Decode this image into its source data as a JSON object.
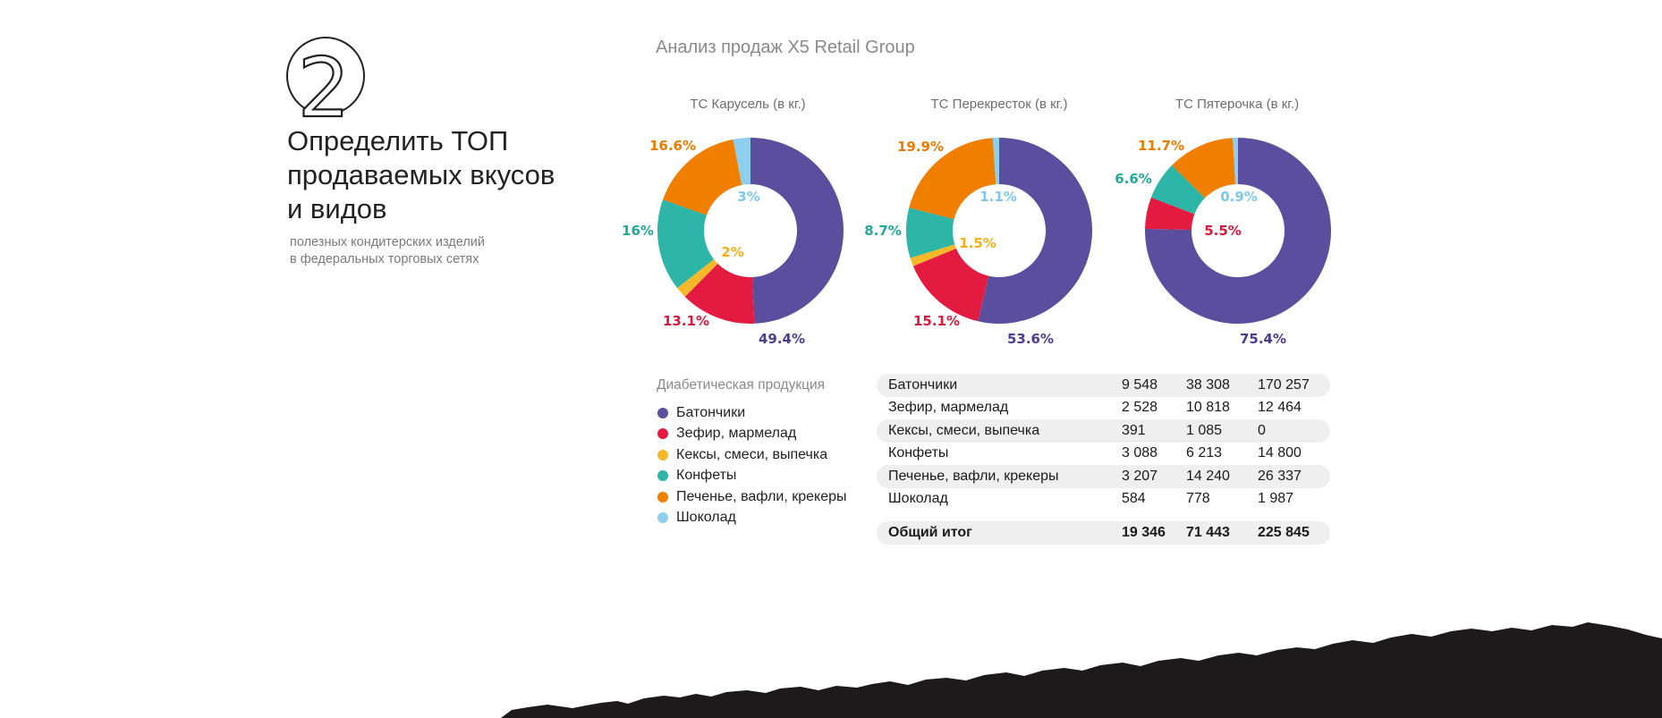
{
  "step_number": "2",
  "heading": {
    "line1": "Определить ТОП",
    "line2": "продаваемых вкусов",
    "line3": "и видов"
  },
  "subheading": {
    "line1": "полезных кондитерских изделий",
    "line2": "в федеральных торговых сетях"
  },
  "main_title": "Анализ продаж X5 Retail Group",
  "legend": {
    "title": "Диабетическая продукция",
    "items": [
      {
        "label": "Батончики",
        "color": "#5b4e9e"
      },
      {
        "label": "Зефир, мармелад",
        "color": "#e31b40"
      },
      {
        "label": "Кексы, смеси, выпечка",
        "color": "#f4b829"
      },
      {
        "label": "Конфеты",
        "color": "#2db5a8"
      },
      {
        "label": "Печенье, вафли, крекеры",
        "color": "#f07f00"
      },
      {
        "label": "Шоколад",
        "color": "#8ecfee"
      }
    ]
  },
  "table": {
    "rows": [
      {
        "name": "Батончики",
        "v1": "9 548",
        "v2": "38 308",
        "v3": "170 257"
      },
      {
        "name": "Зефир, мармелад",
        "v1": "2 528",
        "v2": "10 818",
        "v3": "12 464"
      },
      {
        "name": "Кексы, смеси, выпечка",
        "v1": "391",
        "v2": "1 085",
        "v3": "0"
      },
      {
        "name": "Конфеты",
        "v1": "3 088",
        "v2": "6 213",
        "v3": "14 800"
      },
      {
        "name": "Печенье, вафли, крекеры",
        "v1": "3 207",
        "v2": "14 240",
        "v3": "26 337"
      },
      {
        "name": "Шоколад",
        "v1": "584",
        "v2": "778",
        "v3": "1 987"
      }
    ],
    "total": {
      "name": "Общий итог",
      "v1": "19 346",
      "v2": "71 443",
      "v3": "225 845"
    }
  },
  "chart_data": [
    {
      "type": "pie",
      "title": "ТС Карусель (в кг.)",
      "categories": [
        "Батончики",
        "Зефир, мармелад",
        "Кексы, смеси, выпечка",
        "Конфеты",
        "Печенье, вафли, крекеры",
        "Шоколад"
      ],
      "values": [
        49.4,
        13.1,
        2,
        16,
        16.6,
        3
      ],
      "labels": [
        "49.4%",
        "13.1%",
        "2%",
        "16%",
        "16.6%",
        "3%"
      ]
    },
    {
      "type": "pie",
      "title": "ТС Перекресток (в кг.)",
      "categories": [
        "Батончики",
        "Зефир, мармелад",
        "Кексы, смеси, выпечка",
        "Конфеты",
        "Печенье, вафли, крекеры",
        "Шоколад"
      ],
      "values": [
        53.6,
        15.1,
        1.5,
        8.7,
        19.9,
        1.1
      ],
      "labels": [
        "53.6%",
        "15.1%",
        "1.5%",
        "8.7%",
        "19.9%",
        "1.1%"
      ]
    },
    {
      "type": "pie",
      "title": "ТС Пятерочка (в кг.)",
      "categories": [
        "Батончики",
        "Зефир, мармелад",
        "Кексы, смеси, выпечка",
        "Конфеты",
        "Печенье, вафли, крекеры",
        "Шоколад"
      ],
      "values": [
        75.4,
        5.5,
        0,
        6.6,
        11.7,
        0.9
      ],
      "labels": [
        "75.4%",
        "5.5%",
        "",
        "6.6%",
        "11.7%",
        "0.9%"
      ]
    }
  ]
}
